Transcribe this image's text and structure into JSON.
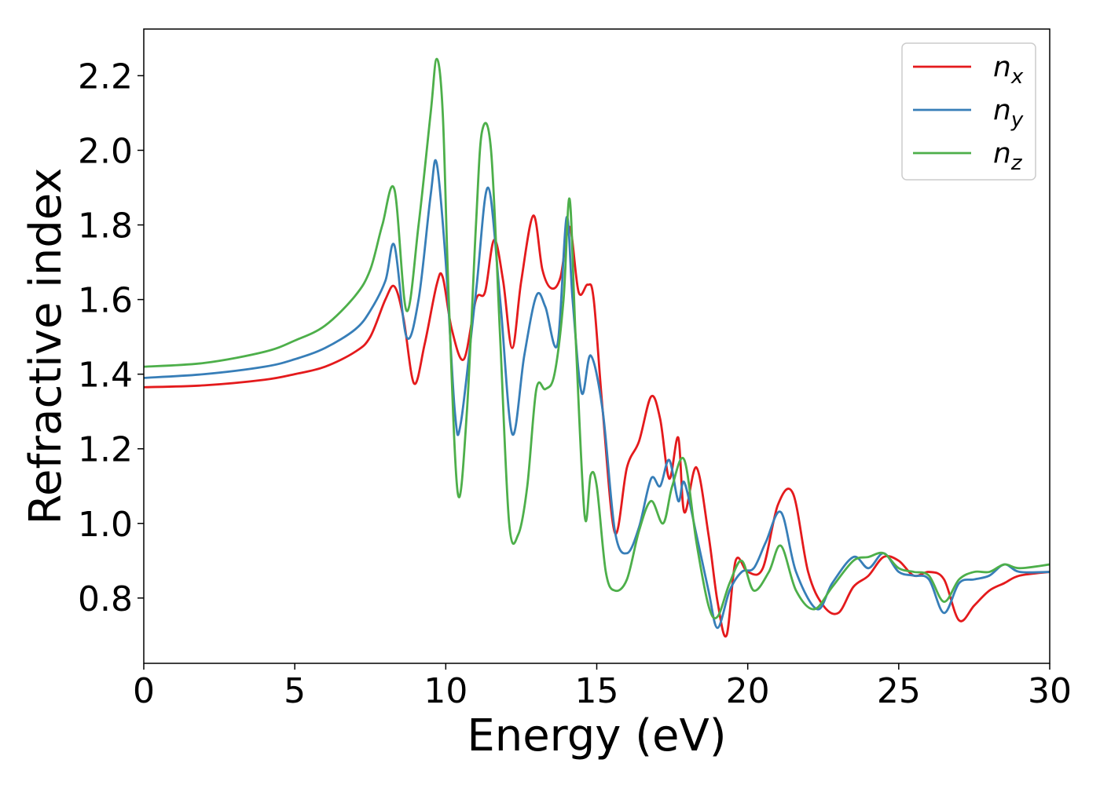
{
  "chart_data": {
    "type": "line",
    "xlabel": "Energy (eV)",
    "ylabel": "Refractive index",
    "xlim": [
      0,
      30
    ],
    "ylim": [
      0.625,
      2.325
    ],
    "xticks": [
      0,
      5,
      10,
      15,
      20,
      25,
      30
    ],
    "xtick_labels": [
      "0",
      "5",
      "10",
      "15",
      "20",
      "25",
      "30"
    ],
    "yticks": [
      0.8,
      1.0,
      1.2,
      1.4,
      1.6,
      1.8,
      2.0,
      2.2
    ],
    "ytick_labels": [
      "0.8",
      "1.0",
      "1.2",
      "1.4",
      "1.6",
      "1.8",
      "2.0",
      "2.2"
    ],
    "grid": false,
    "legend_position": "top-right",
    "series": [
      {
        "name": "n",
        "subscript": "x",
        "color": "#e41a1c",
        "x": [
          0,
          2,
          4,
          5,
          6,
          7,
          7.5,
          8,
          8.3,
          8.6,
          8.95,
          9.3,
          9.7,
          9.9,
          10.2,
          10.6,
          11,
          11.3,
          11.6,
          11.9,
          12.2,
          12.5,
          12.9,
          13.2,
          13.5,
          13.8,
          14.1,
          14.4,
          14.7,
          14.9,
          15.2,
          15.6,
          16,
          16.4,
          16.8,
          17.1,
          17.4,
          17.7,
          17.9,
          18.3,
          18.7,
          19,
          19.3,
          19.6,
          20,
          20.5,
          21,
          21.5,
          22,
          22.5,
          23,
          23.5,
          24,
          24.5,
          25,
          25.5,
          26,
          26.5,
          27,
          27.5,
          28,
          28.5,
          29,
          30
        ],
        "y": [
          1.365,
          1.37,
          1.385,
          1.4,
          1.42,
          1.46,
          1.5,
          1.6,
          1.635,
          1.55,
          1.375,
          1.48,
          1.64,
          1.66,
          1.52,
          1.44,
          1.6,
          1.62,
          1.76,
          1.65,
          1.47,
          1.65,
          1.825,
          1.68,
          1.63,
          1.66,
          1.795,
          1.62,
          1.64,
          1.6,
          1.3,
          0.975,
          1.15,
          1.22,
          1.34,
          1.28,
          1.12,
          1.23,
          1.03,
          1.15,
          0.97,
          0.79,
          0.7,
          0.9,
          0.87,
          0.88,
          1.05,
          1.08,
          0.87,
          0.78,
          0.76,
          0.83,
          0.86,
          0.91,
          0.9,
          0.86,
          0.87,
          0.85,
          0.74,
          0.78,
          0.82,
          0.84,
          0.86,
          0.87
        ]
      },
      {
        "name": "n",
        "subscript": "y",
        "color": "#377eb8",
        "x": [
          0,
          2,
          4,
          5,
          6,
          7,
          7.5,
          8,
          8.3,
          8.7,
          9.1,
          9.5,
          9.7,
          10,
          10.3,
          10.5,
          11,
          11.4,
          11.8,
          12.2,
          12.6,
          13,
          13.3,
          13.7,
          14,
          14.2,
          14.5,
          14.8,
          15.2,
          15.6,
          16,
          16.4,
          16.8,
          17.1,
          17.4,
          17.7,
          17.9,
          18.3,
          18.7,
          19,
          19.4,
          19.8,
          20.2,
          20.6,
          21.1,
          21.6,
          22.3,
          22.8,
          23.5,
          24,
          24.5,
          25,
          25.5,
          26,
          26.5,
          27,
          27.5,
          28,
          28.5,
          29,
          30
        ],
        "y": [
          1.39,
          1.4,
          1.42,
          1.44,
          1.47,
          1.52,
          1.57,
          1.65,
          1.745,
          1.5,
          1.6,
          1.88,
          1.965,
          1.7,
          1.3,
          1.27,
          1.62,
          1.9,
          1.6,
          1.24,
          1.45,
          1.61,
          1.58,
          1.48,
          1.82,
          1.6,
          1.35,
          1.45,
          1.3,
          0.98,
          0.92,
          0.99,
          1.12,
          1.1,
          1.17,
          1.06,
          1.11,
          0.97,
          0.82,
          0.72,
          0.82,
          0.87,
          0.88,
          0.95,
          1.03,
          0.87,
          0.77,
          0.84,
          0.91,
          0.88,
          0.92,
          0.87,
          0.86,
          0.85,
          0.76,
          0.84,
          0.85,
          0.86,
          0.89,
          0.87,
          0.87
        ]
      },
      {
        "name": "n",
        "subscript": "z",
        "color": "#4daf4a",
        "x": [
          0,
          2,
          4,
          5,
          6,
          7,
          7.5,
          7.9,
          8.3,
          8.7,
          9.1,
          9.5,
          9.7,
          9.9,
          10.1,
          10.4,
          10.7,
          11,
          11.2,
          11.5,
          11.8,
          12.1,
          12.4,
          12.7,
          13,
          13.3,
          13.6,
          13.9,
          14.1,
          14.3,
          14.6,
          14.8,
          15,
          15.3,
          15.6,
          16,
          16.4,
          16.8,
          17.2,
          17.5,
          17.9,
          18.3,
          18.7,
          19,
          19.4,
          19.8,
          20.2,
          20.7,
          21.1,
          21.6,
          22.2,
          22.8,
          23.5,
          24,
          24.5,
          25,
          25.5,
          26,
          26.5,
          27,
          27.5,
          28,
          28.5,
          29,
          30
        ],
        "y": [
          1.42,
          1.43,
          1.46,
          1.49,
          1.53,
          1.61,
          1.68,
          1.8,
          1.895,
          1.57,
          1.8,
          2.1,
          2.245,
          2.1,
          1.6,
          1.08,
          1.3,
          1.8,
          2.05,
          2.0,
          1.5,
          1.0,
          0.97,
          1.1,
          1.36,
          1.36,
          1.4,
          1.6,
          1.87,
          1.5,
          1.02,
          1.13,
          1.1,
          0.87,
          0.82,
          0.85,
          0.98,
          1.06,
          1.0,
          1.1,
          1.17,
          0.95,
          0.78,
          0.75,
          0.84,
          0.9,
          0.82,
          0.87,
          0.94,
          0.82,
          0.77,
          0.83,
          0.9,
          0.91,
          0.92,
          0.88,
          0.87,
          0.86,
          0.79,
          0.85,
          0.87,
          0.87,
          0.89,
          0.88,
          0.89
        ]
      }
    ]
  }
}
